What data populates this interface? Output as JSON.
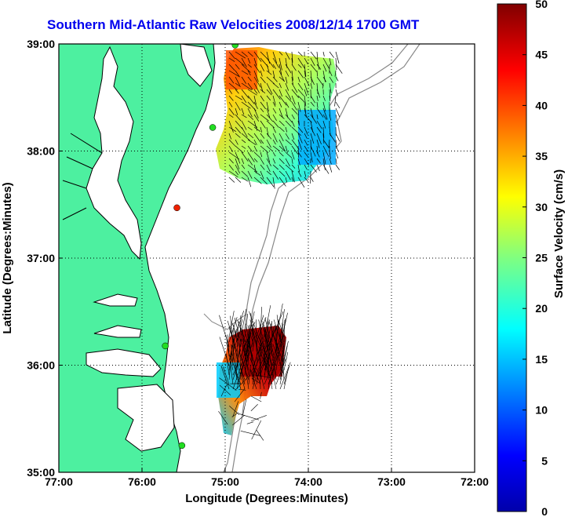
{
  "title": "Southern Mid-Atlantic Raw Velocities 2008/12/14 1700 GMT",
  "x_axis": {
    "label": "Longitude (Degrees:Minutes)",
    "ticks": [
      "77:00",
      "76:00",
      "75:00",
      "74:00",
      "73:00",
      "72:00"
    ]
  },
  "y_axis": {
    "label": "Latitude (Degrees:Minutes)",
    "ticks": [
      "39:00",
      "38:00",
      "37:00",
      "36:00",
      "35:00"
    ]
  },
  "colorbar": {
    "label": "Surface Velocity (cm/s)",
    "ticks": [
      "50",
      "45",
      "40",
      "35",
      "30",
      "25",
      "20",
      "15",
      "10",
      "5",
      "0"
    ]
  },
  "colors": {
    "land": "#4df0a0",
    "title": "#0000ee",
    "isobath": "#888888",
    "station_green": "#22dd22",
    "station_red": "#ee2200"
  },
  "chart_data": {
    "type": "map",
    "lon_range": [
      -77,
      -72
    ],
    "lat_range": [
      35,
      39
    ],
    "color_range": [
      0,
      50
    ],
    "grid": true,
    "stations": [
      {
        "lon": -74.88,
        "lat": 38.99,
        "color": "green"
      },
      {
        "lon": -75.15,
        "lat": 38.22,
        "color": "green"
      },
      {
        "lon": -75.58,
        "lat": 37.47,
        "color": "red"
      },
      {
        "lon": -75.72,
        "lat": 36.18,
        "color": "green"
      },
      {
        "lon": -75.52,
        "lat": 35.25,
        "color": "green"
      }
    ]
  }
}
